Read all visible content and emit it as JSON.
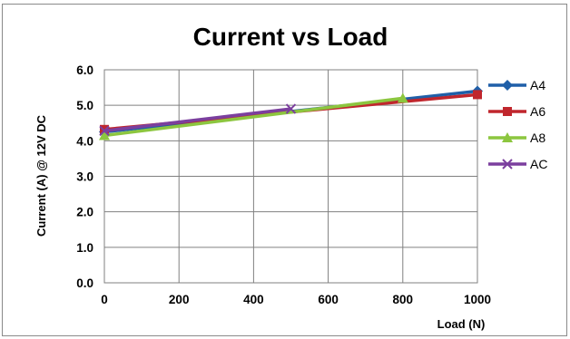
{
  "chart_data": {
    "type": "line",
    "title": "Current vs Load",
    "xlabel": "Load (N)",
    "ylabel": "Current (A) @ 12V DC",
    "xlim": [
      0,
      1000
    ],
    "ylim": [
      0.0,
      6.0
    ],
    "x_ticks": [
      "0",
      "200",
      "400",
      "600",
      "800",
      "1000"
    ],
    "y_ticks": [
      "0.0",
      "1.0",
      "2.0",
      "3.0",
      "4.0",
      "5.0",
      "6.0"
    ],
    "grid": true,
    "legend_position": "right",
    "series": [
      {
        "name": "A4",
        "color": "#1f5fa8",
        "marker": "diamond",
        "x": [
          0,
          1000
        ],
        "y": [
          4.25,
          5.4
        ]
      },
      {
        "name": "A6",
        "color": "#c0262d",
        "marker": "square",
        "x": [
          0,
          1000
        ],
        "y": [
          4.32,
          5.3
        ]
      },
      {
        "name": "A8",
        "color": "#8cc63f",
        "marker": "triangle",
        "x": [
          0,
          800
        ],
        "y": [
          4.15,
          5.2
        ]
      },
      {
        "name": "AC",
        "color": "#7b3f9e",
        "marker": "x",
        "x": [
          0,
          500
        ],
        "y": [
          4.28,
          4.9
        ]
      }
    ]
  }
}
